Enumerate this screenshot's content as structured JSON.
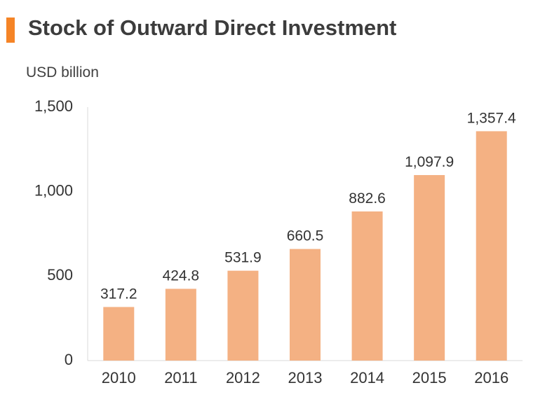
{
  "title": "Stock of Outward Direct Investment",
  "colors": {
    "accent": "#f58426",
    "bar": "#f4b183",
    "axis": "#d9d9d9"
  },
  "chart_data": {
    "type": "bar",
    "title": "Stock of Outward Direct Investment",
    "ylabel": "USD billion",
    "xlabel": "",
    "categories": [
      "2010",
      "2011",
      "2012",
      "2013",
      "2014",
      "2015",
      "2016"
    ],
    "values": [
      317.2,
      424.8,
      531.9,
      660.5,
      882.6,
      1097.9,
      1357.4
    ],
    "data_labels": [
      "317.2",
      "424.8",
      "531.9",
      "660.5",
      "882.6",
      "1,097.9",
      "1,357.4"
    ],
    "ylim": [
      0,
      1500
    ],
    "yticks": [
      0,
      500,
      1000,
      1500
    ],
    "ytick_labels": [
      "0",
      "500",
      "1,000",
      "1,500"
    ],
    "grid": false,
    "legend": "none"
  }
}
